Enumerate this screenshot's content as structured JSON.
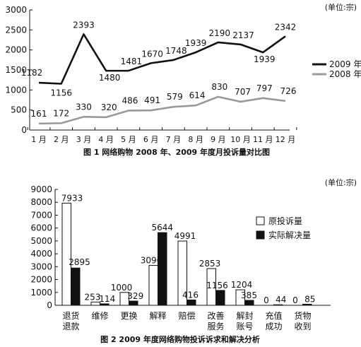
{
  "chart_data": [
    {
      "type": "line",
      "caption": "图 1  网络购物 2008 年、2009 年度月投诉量对比图",
      "unit": "(单位:宗)",
      "categories": [
        "1 月",
        "2 月",
        "3 月",
        "4 月",
        "5 月",
        "6 月",
        "7 月",
        "8 月",
        "9 月",
        "10 月",
        "11 月",
        "12 月"
      ],
      "ylim": [
        0,
        3000
      ],
      "yticks": [
        "0",
        "500",
        "1000",
        "1500",
        "2000",
        "2500",
        "3000"
      ],
      "legend_position": "right",
      "series": [
        {
          "name": "2009 年",
          "color": "#111111",
          "values": [
            1182,
            1156,
            2393,
            1480,
            1481,
            1670,
            1748,
            1939,
            2190,
            2137,
            1939,
            2342
          ],
          "labels": [
            "1182",
            "1156",
            "2393",
            "1480",
            "1481",
            "1670",
            "1748",
            "1939",
            "2190",
            "2137",
            "1939",
            "2342"
          ]
        },
        {
          "name": "2008 年",
          "color": "#999999",
          "values": [
            161,
            172,
            330,
            320,
            486,
            491,
            579,
            614,
            830,
            707,
            797,
            726
          ],
          "labels": [
            "161",
            "172",
            "330",
            "320",
            "486",
            "491",
            "579",
            "614",
            "830",
            "707",
            "797",
            "726"
          ]
        }
      ]
    },
    {
      "type": "bar",
      "caption": "图 2  2009 年度网络购物投诉诉求和解决分析",
      "unit": "(单位:宗)",
      "categories": [
        "退货\n退款",
        "维修",
        "更换",
        "解释",
        "赔偿",
        "改善\n服务",
        "解封\n账号",
        "充值\n成功",
        "货物\n收到"
      ],
      "ylim": [
        0,
        9000
      ],
      "yticks": [
        "0",
        "1000",
        "2000",
        "3000",
        "4000",
        "5000",
        "6000",
        "7000",
        "8000",
        "9000"
      ],
      "legend_position": "right",
      "series": [
        {
          "name": "原投诉量",
          "color": "#ffffff",
          "values": [
            7933,
            253,
            1000,
            3096,
            4991,
            2853,
            1204,
            0,
            0
          ],
          "labels": [
            "7933",
            "253",
            "1000",
            "3096",
            "4991",
            "2853",
            "1204",
            "0",
            "0"
          ]
        },
        {
          "name": "实际解决量",
          "color": "#111111",
          "values": [
            2895,
            114,
            329,
            5644,
            416,
            1156,
            385,
            44,
            85
          ],
          "labels": [
            "2895",
            "114",
            "329",
            "5644",
            "416",
            "1156",
            "385",
            "44",
            "85"
          ]
        }
      ]
    }
  ]
}
